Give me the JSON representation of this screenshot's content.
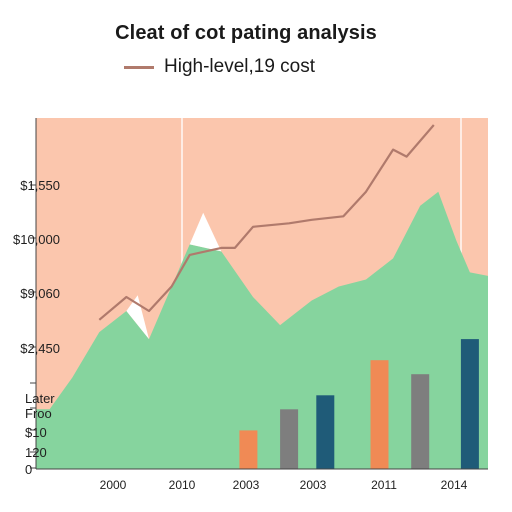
{
  "chart_data": {
    "type": "area",
    "title": "Cleat of cot pating analysis",
    "legend": [
      {
        "label": "High-level,19 cost",
        "color": "#b07a6c",
        "marker": "line"
      }
    ],
    "legend_position": "top-left",
    "xlabel": "",
    "ylabel": "",
    "x_ticks": [
      "2000",
      "2010",
      "2003",
      "2003",
      "2011",
      "2014"
    ],
    "y_ticks_upper": [
      "$1,550",
      "$10,000",
      "$9,060",
      "$2,450"
    ],
    "y_ticks_lower": [
      "Later",
      "Froo",
      "$10",
      "120",
      "0"
    ],
    "x_domain": [
      0,
      100
    ],
    "y_domain": [
      0,
      100
    ],
    "grid": "vertical lines only",
    "background_color": "#fbc6ad",
    "area_series": {
      "color": "#86d49e",
      "points": [
        [
          0,
          17
        ],
        [
          3,
          17
        ],
        [
          8,
          26
        ],
        [
          14,
          39
        ],
        [
          20,
          45
        ],
        [
          25,
          37
        ],
        [
          30,
          52
        ],
        [
          34,
          64
        ],
        [
          41,
          62
        ],
        [
          48,
          49
        ],
        [
          54,
          41
        ],
        [
          61,
          48
        ],
        [
          67,
          52
        ],
        [
          73,
          54
        ],
        [
          79,
          60
        ],
        [
          85,
          75
        ],
        [
          89,
          79
        ],
        [
          93,
          65
        ],
        [
          96,
          56
        ],
        [
          100,
          55
        ]
      ]
    },
    "white_highlights": {
      "color": "#ffffff",
      "polygons": [
        [
          [
            20,
            45
          ],
          [
            22.5,
            49.5
          ],
          [
            25,
            37
          ]
        ],
        [
          [
            34,
            64
          ],
          [
            37,
            73
          ],
          [
            41,
            62
          ]
        ]
      ]
    },
    "line_series": {
      "color": "#b07a6c",
      "points": [
        [
          14,
          42.5
        ],
        [
          20,
          49
        ],
        [
          25,
          45
        ],
        [
          30,
          52
        ],
        [
          34,
          61
        ],
        [
          41,
          63
        ],
        [
          44,
          63
        ],
        [
          48,
          69
        ],
        [
          56,
          70
        ],
        [
          61,
          71
        ],
        [
          68,
          72
        ],
        [
          73,
          79
        ],
        [
          79,
          91
        ],
        [
          82,
          89
        ],
        [
          88,
          98
        ]
      ]
    },
    "bar_series": [
      {
        "name": "",
        "color": "#f08a55",
        "x": 47,
        "value": 11
      },
      {
        "name": "",
        "color": "#7e7e7e",
        "x": 56,
        "value": 17
      },
      {
        "name": "",
        "color": "#1f5b78",
        "x": 64,
        "value": 21
      },
      {
        "name": "",
        "color": "#f08a55",
        "x": 76,
        "value": 31
      },
      {
        "name": "",
        "color": "#7e7e7e",
        "x": 85,
        "value": 27
      },
      {
        "name": "",
        "color": "#1f5b78",
        "x": 96,
        "value": 37
      }
    ]
  }
}
